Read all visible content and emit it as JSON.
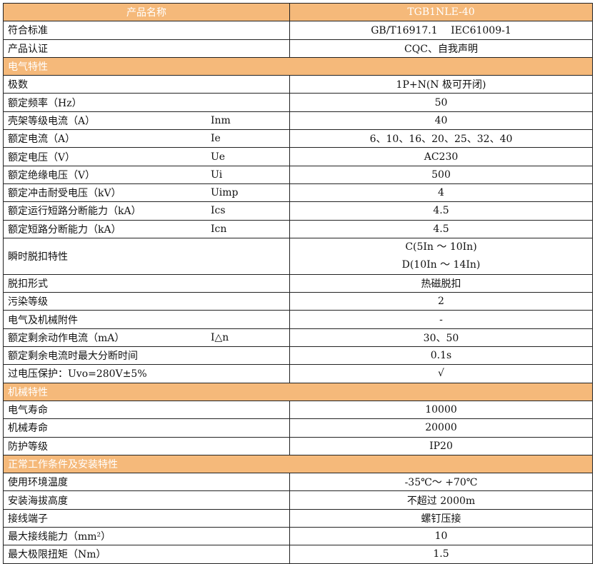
{
  "header": {
    "label": "产品名称",
    "value": "TGB1NLE-40"
  },
  "colors": {
    "header_bg": "#F5B97A",
    "header_text": "#ffffff"
  },
  "rows": [
    {
      "label": "符合标准",
      "value": "GB/T16917.1　 IEC61009-1"
    },
    {
      "label": "产品认证",
      "value": "CQC、自我声明"
    },
    {
      "section": "电气特性"
    },
    {
      "label": "极数",
      "value": "1P+N(N 极可开闭)"
    },
    {
      "label": "额定频率（Hz）",
      "value": "50"
    },
    {
      "label": "壳架等级电流（A）",
      "symbol": "Inm",
      "value": "40"
    },
    {
      "label": "额定电流（A）",
      "symbol": "Ie",
      "value": "6、10、16、20、25、32、40"
    },
    {
      "label": "额定电压（V）",
      "symbol": "Ue",
      "value": "AC230"
    },
    {
      "label": "额定绝缘电压（V）",
      "symbol": "Ui",
      "value": "500"
    },
    {
      "label": "额定冲击耐受电压（kV）",
      "symbol": "Uimp",
      "value": "4"
    },
    {
      "label": "额定运行短路分断能力（kA）",
      "symbol": "Ics",
      "value": "4.5"
    },
    {
      "label": "额定短路分断能力（kA）",
      "symbol": "Icn",
      "value": "4.5"
    },
    {
      "label": "瞬时脱扣特性",
      "value": "C(5In ～ 10In)",
      "value2": "D(10In ～ 14In)"
    },
    {
      "label": "脱扣形式",
      "value": "热磁脱扣"
    },
    {
      "label": "污染等级",
      "value": "2"
    },
    {
      "label": "电气及机械附件",
      "value": "-"
    },
    {
      "label": "额定剩余动作电流（mA）",
      "symbol": "I△n",
      "value": "30、50"
    },
    {
      "label": "额定剩余电流时最大分断时间",
      "value": "0.1s"
    },
    {
      "label": "过电压保护：Uvo=280V±5%",
      "value": "√"
    },
    {
      "section": "机械特性"
    },
    {
      "label": "电气寿命",
      "value": "10000"
    },
    {
      "label": "机械寿命",
      "value": "20000"
    },
    {
      "label": "防护等级",
      "value": "IP20"
    },
    {
      "section": "正常工作条件及安装特性"
    },
    {
      "label": "使用环境温度",
      "value": "-35℃～ +70℃"
    },
    {
      "label": "安装海拔高度",
      "value": "不超过 2000m"
    },
    {
      "label": "接线端子",
      "value": "螺钉压接"
    },
    {
      "label": "最大接线能力（mm²）",
      "value": "10"
    },
    {
      "label": "最大极限扭矩（Nm）",
      "value": "1.5"
    }
  ]
}
